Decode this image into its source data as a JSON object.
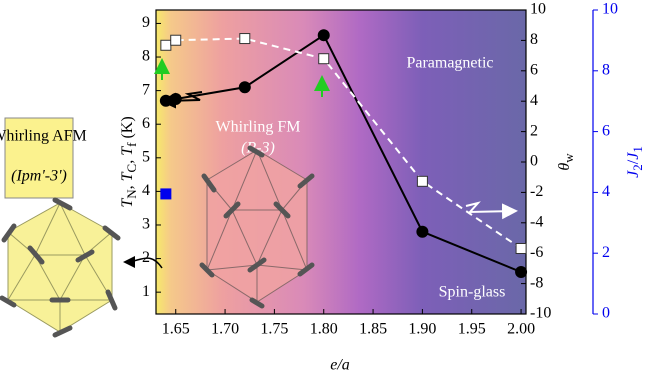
{
  "chart_data": {
    "type": "scatter",
    "xlabel": "e/a",
    "ylabel": [
      "T",
      "N",
      ", ",
      "T",
      "C",
      ", ",
      "T",
      "f",
      " (K)"
    ],
    "y2label": [
      "θ",
      "w"
    ],
    "y3label": [
      "J",
      "2",
      "/",
      "J",
      "1"
    ],
    "annotations": [
      "Paramagnetic",
      "Whirling FM",
      "(R-3)",
      "Spin-glass",
      "Whirling AFM",
      "(Ipm'-3')"
    ],
    "xlim": [
      1.63,
      2.005
    ],
    "xticks": [
      1.65,
      {
        "value": 1.7,
        "label": "1.70"
      },
      1.75,
      {
        "value": 1.8,
        "label": "1.80"
      },
      1.85,
      {
        "value": 1.9,
        "label": "1.90"
      },
      1.95,
      {
        "value": 2.0,
        "label": "2.00"
      }
    ],
    "ylim": [
      0.35,
      9.4
    ],
    "yticks": [
      1,
      2,
      3,
      4,
      5,
      6,
      7,
      8,
      9
    ],
    "y2lim": [
      -10,
      10
    ],
    "y2ticks": [
      -10,
      -8,
      -6,
      -4,
      -2,
      0,
      2,
      4,
      6,
      8,
      10
    ],
    "y3lim": [
      0,
      10
    ],
    "y3ticks": [
      0,
      2,
      4,
      6,
      8,
      10
    ],
    "series": [
      {
        "color": "#000000",
        "marker": "circle",
        "line": "solid",
        "axis": "y",
        "x": [
          1.64,
          1.65,
          1.72,
          1.8,
          1.9,
          2.0
        ],
        "values": [
          6.7,
          6.75,
          7.1,
          8.65,
          2.8,
          1.6
        ]
      },
      {
        "color": "#ffffff",
        "marker": "square",
        "line": "dashed",
        "axis": "y",
        "x": [
          1.64,
          1.65,
          1.72,
          1.8,
          1.9,
          2.0
        ],
        "values": [
          8.35,
          8.5,
          8.55,
          7.95,
          4.3,
          2.3
        ]
      },
      {
        "color": "#0000ee",
        "marker": "square",
        "line": "none",
        "axis": "y3",
        "x": [
          1.64
        ],
        "values": [
          3.95
        ]
      }
    ]
  }
}
